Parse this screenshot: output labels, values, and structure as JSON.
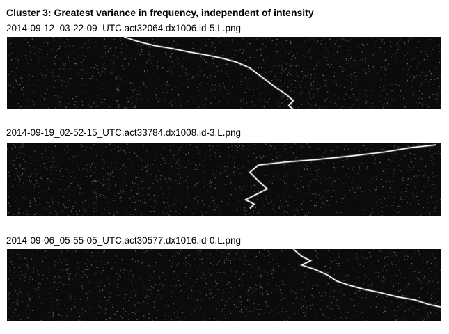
{
  "page": {
    "title": "Cluster 3: Greatest variance in frequency, independent of intensity"
  },
  "panels": [
    {
      "caption": "2014-09-12_03-22-09_UTC.act32064.dx1006.id-5.L.png",
      "trace": [
        [
          0.27,
          0.0
        ],
        [
          0.3,
          0.06
        ],
        [
          0.34,
          0.12
        ],
        [
          0.38,
          0.16
        ],
        [
          0.42,
          0.21
        ],
        [
          0.46,
          0.25
        ],
        [
          0.5,
          0.3
        ],
        [
          0.53,
          0.35
        ],
        [
          0.56,
          0.43
        ],
        [
          0.58,
          0.52
        ],
        [
          0.6,
          0.61
        ],
        [
          0.62,
          0.7
        ],
        [
          0.645,
          0.8
        ],
        [
          0.66,
          0.88
        ],
        [
          0.65,
          0.95
        ],
        [
          0.66,
          1.0
        ]
      ]
    },
    {
      "caption": "2014-09-19_02-52-15_UTC.act33784.dx1008.id-3.L.png",
      "trace": [
        [
          0.99,
          0.02
        ],
        [
          0.96,
          0.04
        ],
        [
          0.93,
          0.06
        ],
        [
          0.87,
          0.12
        ],
        [
          0.8,
          0.17
        ],
        [
          0.72,
          0.22
        ],
        [
          0.64,
          0.26
        ],
        [
          0.58,
          0.3
        ],
        [
          0.56,
          0.4
        ],
        [
          0.58,
          0.52
        ],
        [
          0.6,
          0.63
        ],
        [
          0.57,
          0.72
        ],
        [
          0.55,
          0.78
        ],
        [
          0.57,
          0.84
        ],
        [
          0.56,
          0.9
        ]
      ]
    },
    {
      "caption": "2014-09-06_05-55-05_UTC.act30577.dx1016.id-0.L.png",
      "trace": [
        [
          0.66,
          0.0
        ],
        [
          0.68,
          0.1
        ],
        [
          0.7,
          0.16
        ],
        [
          0.68,
          0.22
        ],
        [
          0.71,
          0.28
        ],
        [
          0.74,
          0.36
        ],
        [
          0.76,
          0.44
        ],
        [
          0.79,
          0.5
        ],
        [
          0.82,
          0.55
        ],
        [
          0.86,
          0.6
        ],
        [
          0.9,
          0.66
        ],
        [
          0.94,
          0.7
        ],
        [
          0.97,
          0.76
        ],
        [
          1.0,
          0.8
        ]
      ]
    }
  ]
}
